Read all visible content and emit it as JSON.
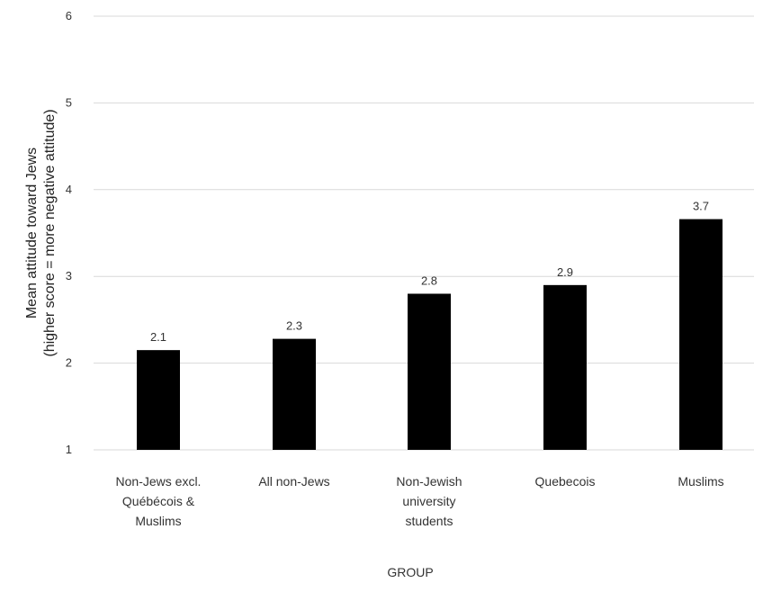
{
  "chart_data": {
    "type": "bar",
    "categories": [
      "Non-Jews excl. Québécois & Muslims",
      "All non-Jews",
      "Non-Jewish university students",
      "Quebecois",
      "Muslims"
    ],
    "category_label_lines": [
      [
        "Non-Jews excl.",
        "Québécois &",
        "Muslims"
      ],
      [
        "All non-Jews"
      ],
      [
        "Non-Jewish",
        "university",
        "students"
      ],
      [
        "Quebecois"
      ],
      [
        "Muslims"
      ]
    ],
    "values": [
      2.15,
      2.28,
      2.8,
      2.9,
      3.66
    ],
    "data_labels": [
      "2.1",
      "2.3",
      "2.8",
      "2.9",
      "3.7"
    ],
    "ylim": [
      1,
      6
    ],
    "yticks": [
      1,
      2,
      3,
      4,
      5,
      6
    ],
    "xlabel": "GROUP",
    "ylabel_lines": [
      "Mean attitude toward Jews",
      "(higher score = more negative attitude)"
    ],
    "bar_color": "#000000",
    "grid_color": "#d9d9d9",
    "grid": true,
    "legend": false
  }
}
